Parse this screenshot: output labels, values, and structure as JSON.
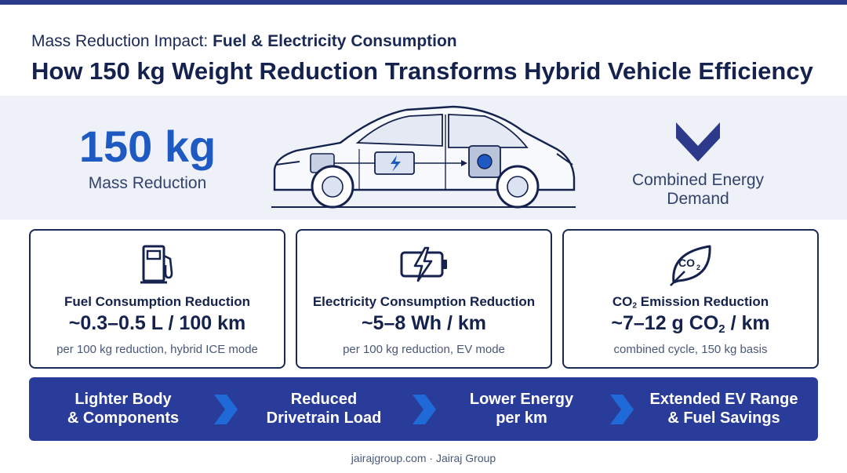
{
  "header": {
    "subtitle_prefix": "Mass Reduction Impact: ",
    "subtitle_bold": "Fuel & Electricity Consumption",
    "title": "How 150 kg Weight Reduction Transforms Hybrid Vehicle Efficiency"
  },
  "hero": {
    "big_value": "150 kg",
    "big_label": "Mass Reduction",
    "right_line1": "Combined Energy",
    "right_line2": "Demand"
  },
  "cards": [
    {
      "icon": "fuel-pump-icon",
      "title": "Fuel Consumption Reduction",
      "value": "~0.3–0.5 L / 100 km",
      "note": "per 100 kg reduction, hybrid ICE mode"
    },
    {
      "icon": "battery-bolt-icon",
      "title": "Electricity Consumption Reduction",
      "value": "~5–8 Wh / km",
      "note": "per 100 kg reduction, EV mode"
    },
    {
      "icon": "co2-leaf-icon",
      "title_pre": "CO",
      "title_sub": "2",
      "title_post": " Emission Reduction",
      "value_pre": "~7–12 g CO",
      "value_sub": "2",
      "value_post": " / km",
      "note": "combined cycle, 150 kg basis",
      "icon_text": "CO",
      "icon_text_sub": "2"
    }
  ],
  "flow": [
    {
      "line1": "Lighter Body",
      "line2": "& Components"
    },
    {
      "line1": "Reduced",
      "line2": "Drivetrain Load"
    },
    {
      "line1": "Lower Energy",
      "line2": "per km"
    },
    {
      "line1": "Extended EV Range",
      "line2": "& Fuel Savings"
    }
  ],
  "footer": "jairajgroup.com · Jairaj Group",
  "colors": {
    "navy": "#15224d",
    "accent_blue": "#1f59c2",
    "flow_bg": "#2a3c9a",
    "hero_bg": "#eef1f7"
  }
}
